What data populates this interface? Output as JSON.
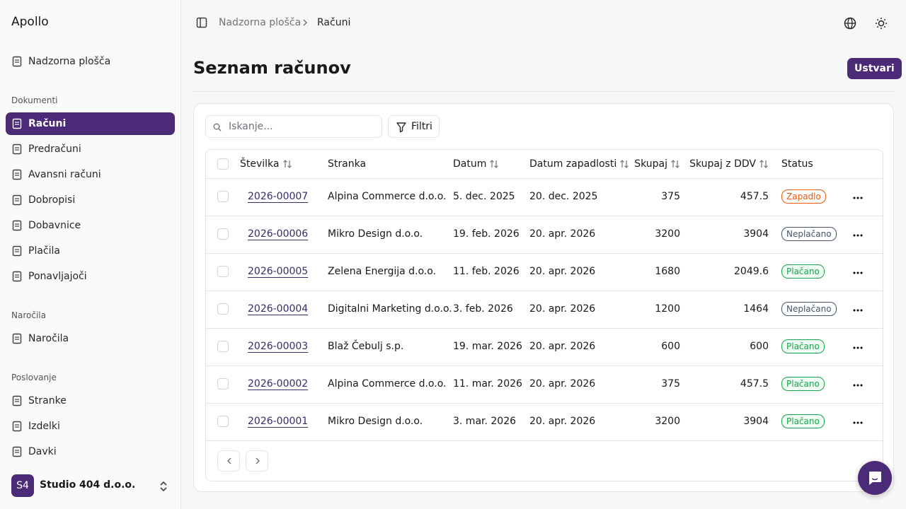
{
  "sidebar": {
    "brand": "Apollo",
    "top": [
      {
        "label": "Nadzorna plošča"
      }
    ],
    "groups": [
      {
        "title": "Dokumenti",
        "items": [
          {
            "label": "Računi",
            "active": true
          },
          {
            "label": "Predračuni"
          },
          {
            "label": "Avansni računi"
          },
          {
            "label": "Dobropisi"
          },
          {
            "label": "Dobavnice"
          },
          {
            "label": "Plačila"
          },
          {
            "label": "Ponavljajoči"
          }
        ]
      },
      {
        "title": "Naročila",
        "items": [
          {
            "label": "Naročila"
          }
        ]
      },
      {
        "title": "Poslovanje",
        "items": [
          {
            "label": "Stranke"
          },
          {
            "label": "Izdelki"
          },
          {
            "label": "Davki"
          }
        ]
      }
    ],
    "org": {
      "initials": "S4",
      "name": "Studio 404 d.o.o."
    }
  },
  "header": {
    "breadcrumbs": [
      "Nadzorna plošča",
      "Računi"
    ]
  },
  "page": {
    "title": "Seznam računov",
    "create": "Ustvari",
    "search_placeholder": "Iskanje...",
    "filter": "Filtri"
  },
  "table": {
    "columns": [
      {
        "label": "Številka",
        "sortable": true
      },
      {
        "label": "Stranka"
      },
      {
        "label": "Datum",
        "sortable": true
      },
      {
        "label": "Datum zapadlosti",
        "sortable": true
      },
      {
        "label": "Skupaj",
        "sortable": true
      },
      {
        "label": "Skupaj z DDV",
        "sortable": true
      },
      {
        "label": "Status"
      }
    ],
    "rows": [
      {
        "number": "2026-00007",
        "client": "Alpina Commerce d.o.o.",
        "date": "5. dec. 2025",
        "due": "20. dec. 2025",
        "total": 375,
        "total_vat": 457.5,
        "status": "Zapadlo",
        "status_color": "#ea580c"
      },
      {
        "number": "2026-00006",
        "client": "Mikro Design d.o.o.",
        "date": "19. feb. 2026",
        "due": "20. apr. 2026",
        "total": 3200,
        "total_vat": 3904,
        "status": "Neplačano",
        "status_color": "#475569"
      },
      {
        "number": "2026-00005",
        "client": "Zelena Energija d.o.o.",
        "date": "11. feb. 2026",
        "due": "20. apr. 2026",
        "total": 1680,
        "total_vat": 2049.6,
        "status": "Plačano",
        "status_color": "#16a34a"
      },
      {
        "number": "2026-00004",
        "client": "Digitalni Marketing d.o.o.",
        "date": "3. feb. 2026",
        "due": "20. apr. 2026",
        "total": 1200,
        "total_vat": 1464,
        "status": "Neplačano",
        "status_color": "#475569"
      },
      {
        "number": "2026-00003",
        "client": "Blaž Čebulj s.p.",
        "date": "19. mar. 2026",
        "due": "20. apr. 2026",
        "total": 600,
        "total_vat": 600,
        "status": "Plačano",
        "status_color": "#16a34a"
      },
      {
        "number": "2026-00002",
        "client": "Alpina Commerce d.o.o.",
        "date": "11. mar. 2026",
        "due": "20. apr. 2026",
        "total": 375,
        "total_vat": 457.5,
        "status": "Plačano",
        "status_color": "#16a34a"
      },
      {
        "number": "2026-00001",
        "client": "Mikro Design d.o.o.",
        "date": "3. mar. 2026",
        "due": "20. apr. 2026",
        "total": 3200,
        "total_vat": 3904,
        "status": "Plačano",
        "status_color": "#16a34a"
      }
    ]
  }
}
